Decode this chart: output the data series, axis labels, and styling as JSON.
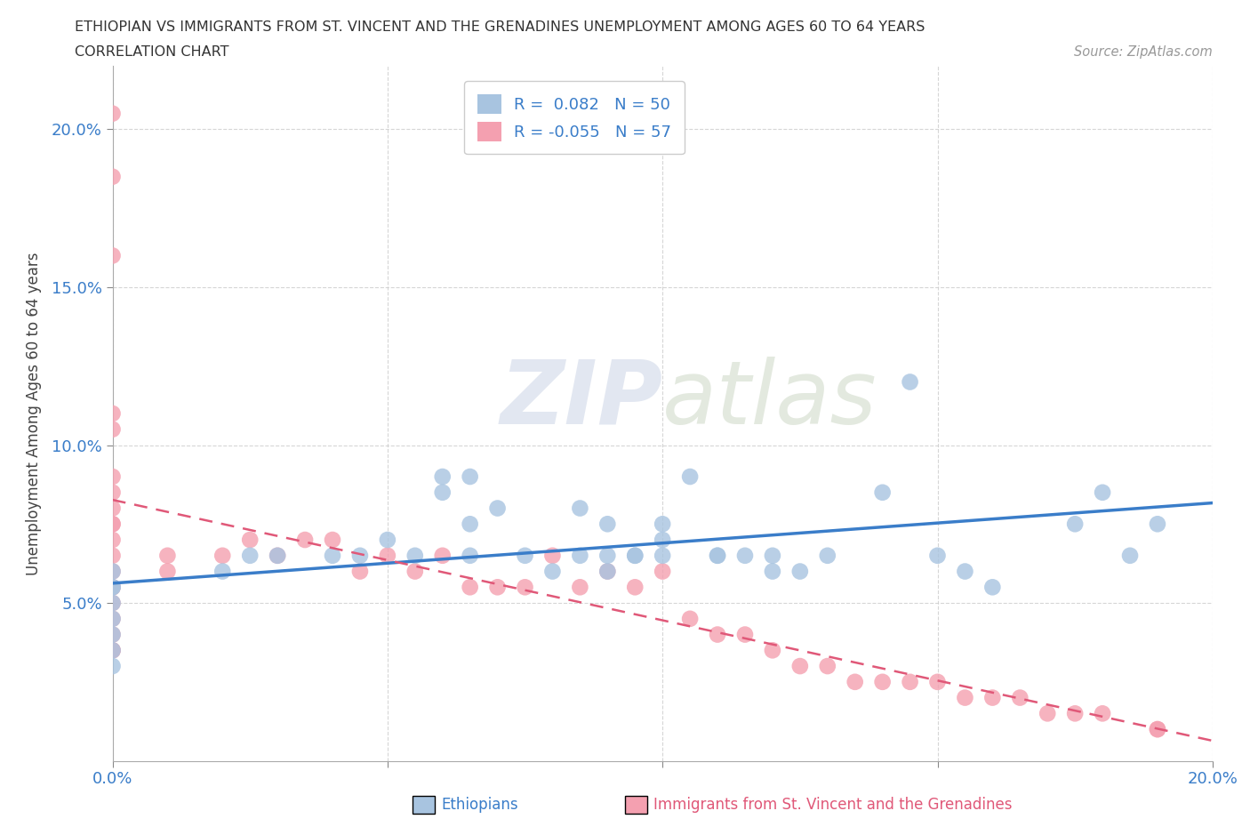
{
  "title_line1": "ETHIOPIAN VS IMMIGRANTS FROM ST. VINCENT AND THE GRENADINES UNEMPLOYMENT AMONG AGES 60 TO 64 YEARS",
  "title_line2": "CORRELATION CHART",
  "source": "Source: ZipAtlas.com",
  "ylabel": "Unemployment Among Ages 60 to 64 years",
  "xlim": [
    0.0,
    0.2
  ],
  "ylim": [
    0.0,
    0.22
  ],
  "grid_color": "#cccccc",
  "background_color": "#ffffff",
  "ethiopian_color": "#a8c4e0",
  "svg_color": "#f4a0b0",
  "ethiopian_line_color": "#3a7dc9",
  "svg_line_color": "#e05878",
  "ethiopian_R": 0.082,
  "ethiopian_N": 50,
  "svg_R": -0.055,
  "svg_N": 57,
  "ethiopian_scatter_x": [
    0.0,
    0.0,
    0.0,
    0.0,
    0.0,
    0.0,
    0.0,
    0.0,
    0.02,
    0.025,
    0.03,
    0.04,
    0.045,
    0.05,
    0.055,
    0.06,
    0.065,
    0.065,
    0.07,
    0.075,
    0.08,
    0.085,
    0.09,
    0.09,
    0.095,
    0.1,
    0.1,
    0.105,
    0.11,
    0.115,
    0.12,
    0.125,
    0.13,
    0.14,
    0.145,
    0.15,
    0.155,
    0.16,
    0.175,
    0.18,
    0.185,
    0.19,
    0.06,
    0.065,
    0.085,
    0.09,
    0.095,
    0.1,
    0.11,
    0.12
  ],
  "ethiopian_scatter_y": [
    0.06,
    0.055,
    0.055,
    0.05,
    0.045,
    0.04,
    0.035,
    0.03,
    0.06,
    0.065,
    0.065,
    0.065,
    0.065,
    0.07,
    0.065,
    0.085,
    0.075,
    0.09,
    0.08,
    0.065,
    0.06,
    0.065,
    0.065,
    0.06,
    0.065,
    0.065,
    0.075,
    0.09,
    0.065,
    0.065,
    0.06,
    0.06,
    0.065,
    0.085,
    0.12,
    0.065,
    0.06,
    0.055,
    0.075,
    0.085,
    0.065,
    0.075,
    0.09,
    0.065,
    0.08,
    0.075,
    0.065,
    0.07,
    0.065,
    0.065
  ],
  "svg_scatter_x": [
    0.0,
    0.0,
    0.0,
    0.0,
    0.0,
    0.0,
    0.0,
    0.0,
    0.0,
    0.0,
    0.0,
    0.0,
    0.0,
    0.0,
    0.0,
    0.0,
    0.0,
    0.0,
    0.0,
    0.0,
    0.01,
    0.01,
    0.02,
    0.025,
    0.03,
    0.035,
    0.04,
    0.045,
    0.05,
    0.055,
    0.06,
    0.065,
    0.07,
    0.075,
    0.08,
    0.085,
    0.09,
    0.095,
    0.1,
    0.105,
    0.11,
    0.115,
    0.12,
    0.125,
    0.13,
    0.135,
    0.14,
    0.145,
    0.15,
    0.155,
    0.16,
    0.165,
    0.17,
    0.175,
    0.18,
    0.19,
    0.19
  ],
  "svg_scatter_y": [
    0.205,
    0.185,
    0.16,
    0.11,
    0.105,
    0.09,
    0.085,
    0.08,
    0.075,
    0.075,
    0.07,
    0.065,
    0.06,
    0.055,
    0.055,
    0.05,
    0.045,
    0.04,
    0.035,
    0.035,
    0.065,
    0.06,
    0.065,
    0.07,
    0.065,
    0.07,
    0.07,
    0.06,
    0.065,
    0.06,
    0.065,
    0.055,
    0.055,
    0.055,
    0.065,
    0.055,
    0.06,
    0.055,
    0.06,
    0.045,
    0.04,
    0.04,
    0.035,
    0.03,
    0.03,
    0.025,
    0.025,
    0.025,
    0.025,
    0.02,
    0.02,
    0.02,
    0.015,
    0.015,
    0.015,
    0.01,
    0.01
  ]
}
